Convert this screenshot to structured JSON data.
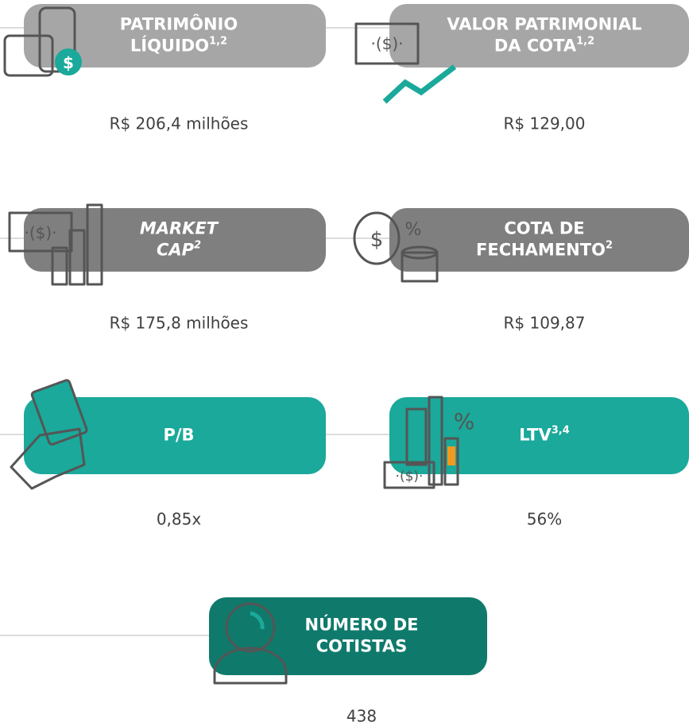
{
  "cards": [
    {
      "title_lines": [
        "PATRIMÔNIO",
        "LÍQUIDO"
      ],
      "sup": "1,2",
      "value": "R$ 206,4 milhões"
    },
    {
      "title_lines": [
        "VALOR PATRIMONIAL",
        "DA COTA"
      ],
      "sup": "1,2",
      "value": "R$ 129,00"
    },
    {
      "title_lines": [
        "MARKET",
        "CAP"
      ],
      "sup": "2",
      "italic": true,
      "value": "R$ 175,8 milhões"
    },
    {
      "title_lines": [
        "COTA DE",
        "FECHAMENTO"
      ],
      "sup": "2",
      "value": "R$ 109,87"
    },
    {
      "title_lines": [
        "P/B"
      ],
      "value": "0,85x"
    },
    {
      "title_lines": [
        "LTV"
      ],
      "sup": "3,4",
      "value": "56%"
    },
    {
      "title_lines": [
        "NÚMERO DE",
        "COTISTAS"
      ],
      "value": "438"
    }
  ]
}
